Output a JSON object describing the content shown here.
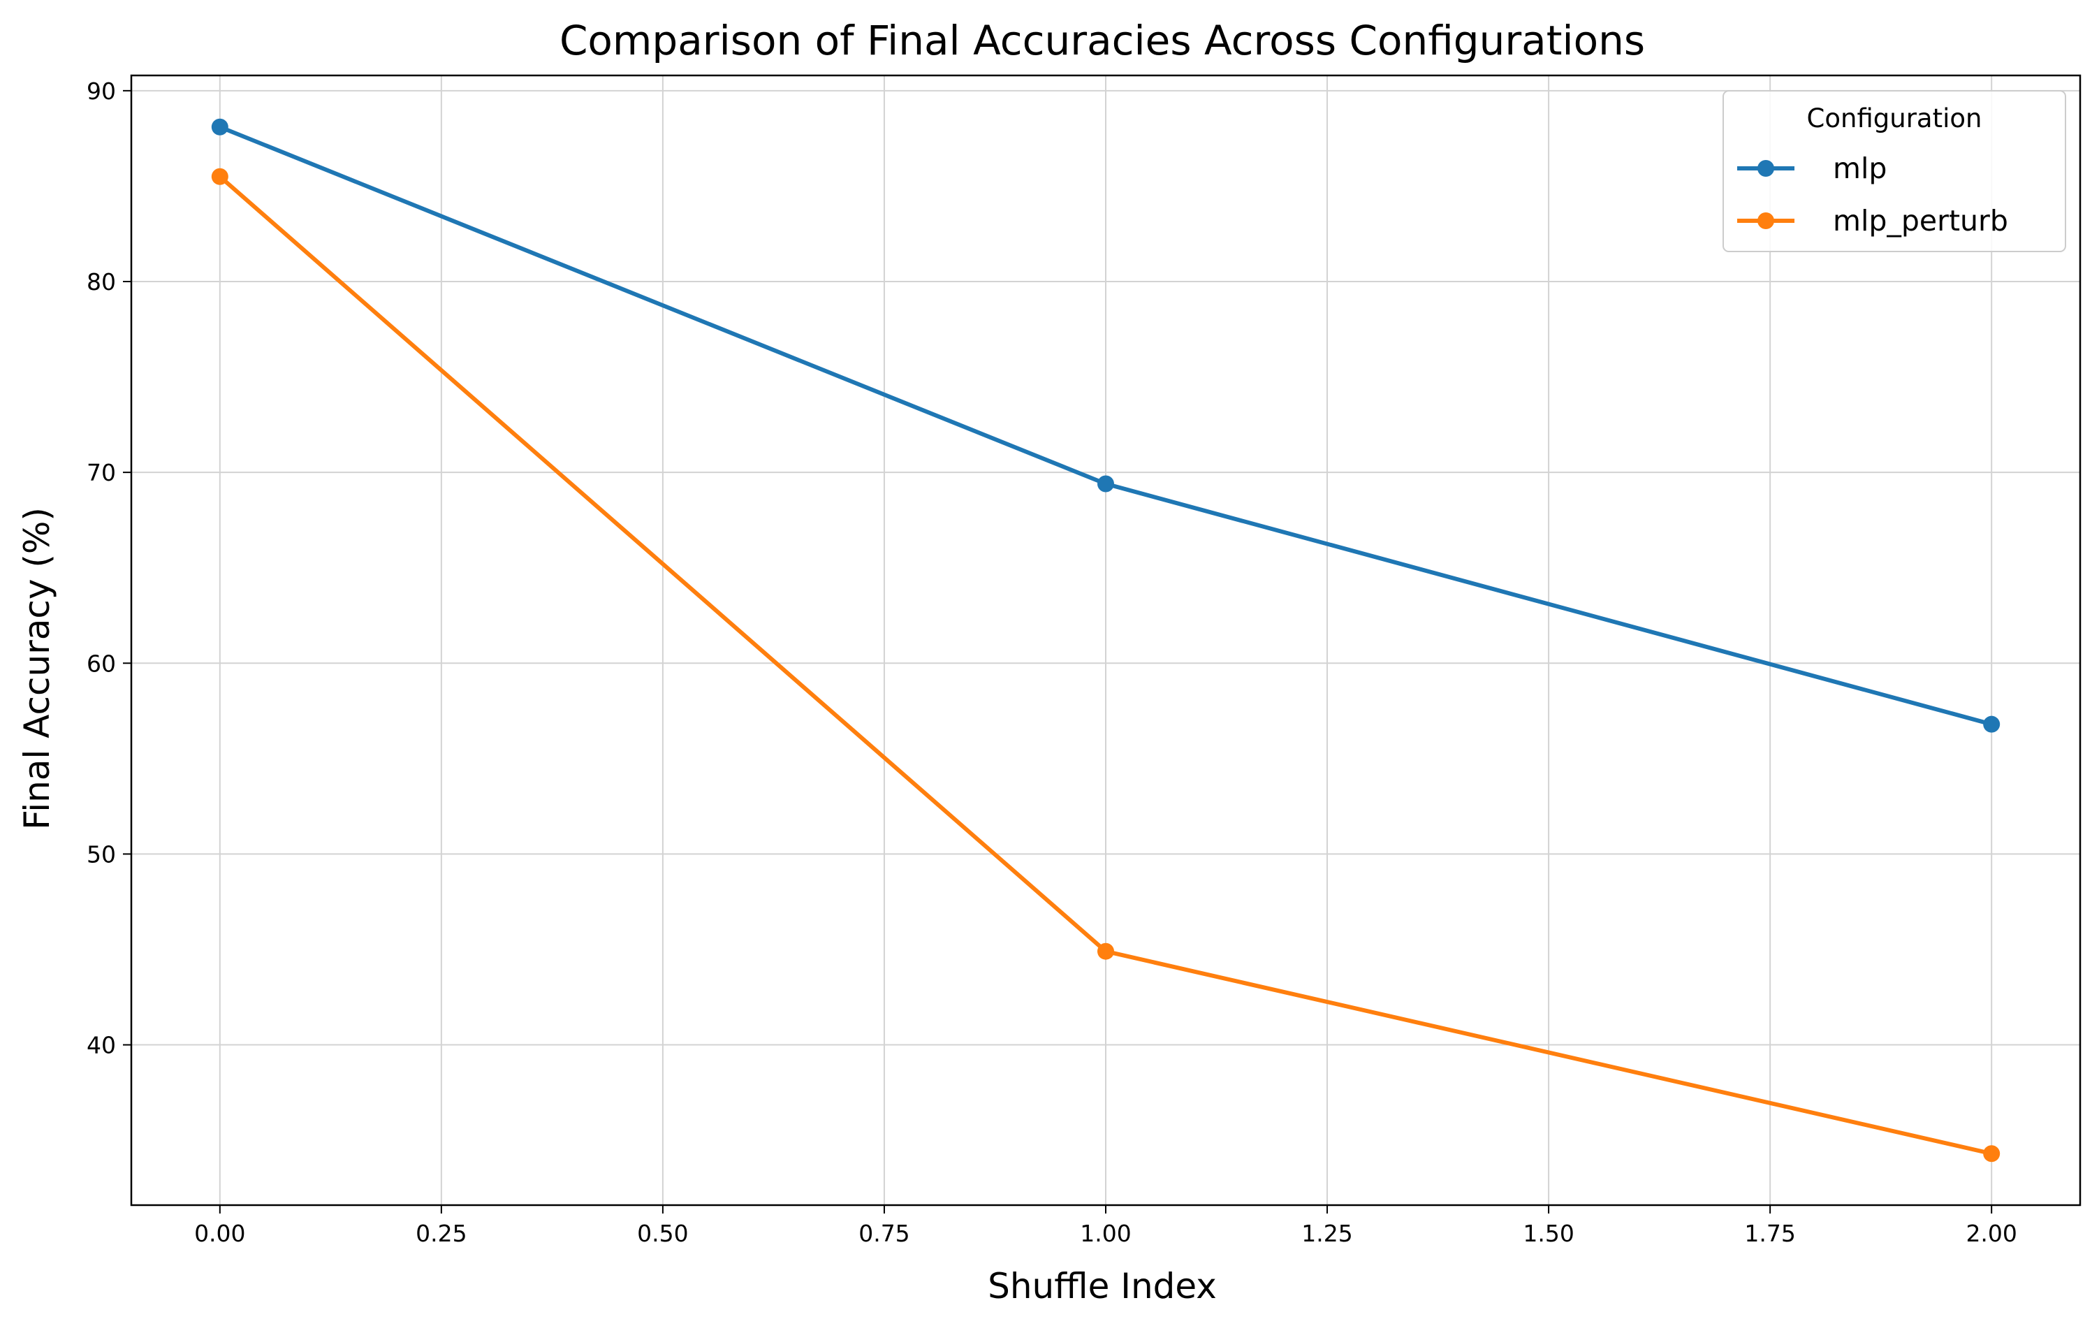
{
  "chart_data": {
    "type": "line",
    "title": "Comparison of Final Accuracies Across Configurations",
    "xlabel": "Shuffle Index",
    "ylabel": "Final Accuracy (%)",
    "xlim": [
      -0.1,
      2.1
    ],
    "ylim": [
      31.6,
      90.8
    ],
    "x_ticks": [
      0.0,
      0.25,
      0.5,
      0.75,
      1.0,
      1.25,
      1.5,
      1.75,
      2.0
    ],
    "x_tick_labels": [
      "0.00",
      "0.25",
      "0.50",
      "0.75",
      "1.00",
      "1.25",
      "1.50",
      "1.75",
      "2.00"
    ],
    "y_ticks": [
      40,
      50,
      60,
      70,
      80,
      90
    ],
    "y_tick_labels": [
      "40",
      "50",
      "60",
      "70",
      "80",
      "90"
    ],
    "grid": true,
    "legend": {
      "title": "Configuration",
      "placement": "top-right"
    },
    "x": [
      0,
      1,
      2
    ],
    "series": [
      {
        "name": "mlp",
        "values": [
          88.1,
          69.4,
          56.8
        ],
        "color": "#1f77b4",
        "marker": "circle"
      },
      {
        "name": "mlp_perturb",
        "values": [
          85.5,
          44.9,
          34.3
        ],
        "color": "#ff7f0e",
        "marker": "circle"
      }
    ]
  }
}
